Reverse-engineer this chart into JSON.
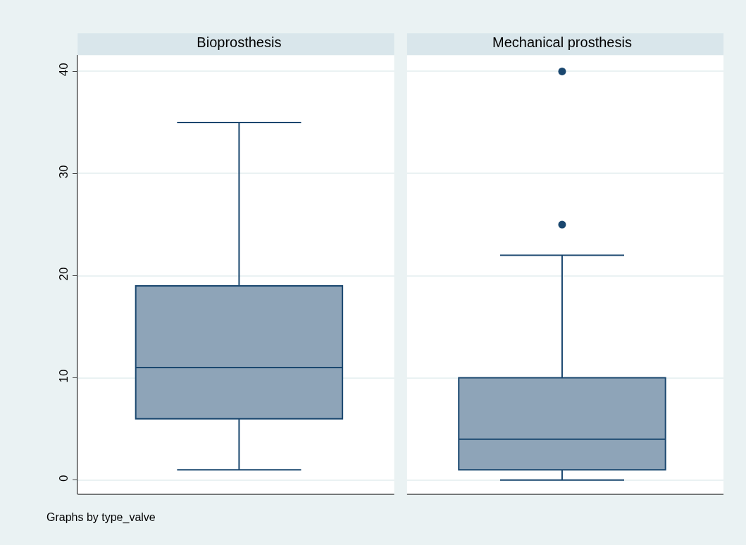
{
  "chart_data": {
    "type": "box",
    "categories": [
      "Bioprosthesis",
      "Mechanical prosthesis"
    ],
    "colors": [
      "#8ea4b8",
      "#8ea4b8"
    ],
    "series": [
      {
        "color": "#1a476f",
        "boxes": [
          {
            "low": 1,
            "q1": 6,
            "median": 11,
            "q3": 19,
            "high": 35
          },
          {
            "low": 0,
            "q1": 1,
            "median": 4,
            "q3": 10,
            "high": 22,
            "outliers": [
              25,
              40
            ]
          }
        ]
      }
    ],
    "ylim": [
      -1.4,
      41.6
    ],
    "yticks": [
      0,
      10,
      20,
      30,
      40
    ],
    "grid": "y",
    "annotations": [
      "Graphs by type_valve"
    ]
  }
}
